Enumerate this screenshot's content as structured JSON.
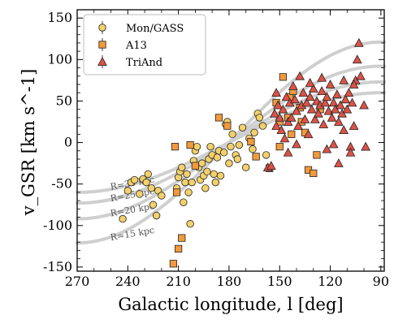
{
  "chart_data": {
    "type": "scatter",
    "xlabel": "Galactic longitude, l [deg]",
    "ylabel": "v_GSR [km s^-1]",
    "xlim": [
      270,
      88
    ],
    "ylim": [
      -155,
      160
    ],
    "x_ticks": [
      270,
      240,
      210,
      180,
      150,
      120,
      90
    ],
    "y_ticks": [
      -150,
      -100,
      -50,
      0,
      50,
      100,
      150
    ],
    "grid": false,
    "legend_position": "top-left",
    "series": [
      {
        "name": "Mon/GASS",
        "marker": "circle",
        "color": "#f3d06a",
        "points": [
          [
            243,
            -92
          ],
          [
            240,
            -58
          ],
          [
            238,
            -48
          ],
          [
            236,
            -45
          ],
          [
            233,
            -62
          ],
          [
            231,
            -44
          ],
          [
            229,
            -48
          ],
          [
            228,
            -38
          ],
          [
            226,
            -55
          ],
          [
            225,
            -75
          ],
          [
            223,
            -88
          ],
          [
            222,
            -58
          ],
          [
            220,
            -64
          ],
          [
            211,
            -55
          ],
          [
            210,
            -42
          ],
          [
            209,
            -35
          ],
          [
            208,
            -30
          ],
          [
            207,
            -72
          ],
          [
            206,
            -48
          ],
          [
            205,
            -38
          ],
          [
            204,
            -60
          ],
          [
            203,
            -98
          ],
          [
            202,
            -48
          ],
          [
            201,
            -22
          ],
          [
            200,
            -10
          ],
          [
            199,
            -5
          ],
          [
            198,
            -30
          ],
          [
            197,
            -45
          ],
          [
            196,
            -25
          ],
          [
            195,
            -40
          ],
          [
            194,
            -55
          ],
          [
            193,
            -35
          ],
          [
            192,
            -20
          ],
          [
            191,
            -5
          ],
          [
            190,
            -15
          ],
          [
            189,
            -38
          ],
          [
            188,
            -48
          ],
          [
            187,
            -18
          ],
          [
            186,
            -10
          ],
          [
            185,
            -40
          ],
          [
            183,
            -12
          ],
          [
            182,
            22
          ],
          [
            181,
            25
          ],
          [
            180,
            -25
          ],
          [
            179,
            -5
          ],
          [
            178,
            10
          ],
          [
            176,
            -15
          ],
          [
            175,
            -20
          ],
          [
            174,
            -3
          ],
          [
            172,
            18
          ],
          [
            170,
            -30
          ],
          [
            168,
            5
          ],
          [
            166,
            -8
          ],
          [
            165,
            12
          ],
          [
            163,
            35
          ],
          [
            162,
            30
          ],
          [
            160,
            20
          ],
          [
            158,
            -15
          ]
        ]
      },
      {
        "name": "A13",
        "marker": "square",
        "color": "#f29a3b",
        "points": [
          [
            213,
            -146
          ],
          [
            210,
            -128
          ],
          [
            208,
            -115
          ],
          [
            211,
            -60
          ],
          [
            212,
            -5
          ],
          [
            203,
            -3
          ],
          [
            200,
            -28
          ],
          [
            186,
            30
          ],
          [
            181,
            20
          ],
          [
            167,
            1
          ],
          [
            164,
            -17
          ],
          [
            156,
            -31
          ],
          [
            152,
            48
          ],
          [
            150,
            -5
          ],
          [
            150,
            25
          ],
          [
            148,
            79
          ],
          [
            145,
            30
          ],
          [
            144,
            55
          ],
          [
            143,
            10
          ],
          [
            142,
            62
          ],
          [
            138,
            42
          ],
          [
            137,
            25
          ],
          [
            135,
            12
          ],
          [
            133,
            -33
          ],
          [
            130,
            -37
          ],
          [
            128,
            -15
          ],
          [
            126,
            40
          ]
        ]
      },
      {
        "name": "TriAnd",
        "marker": "triangle",
        "color": "#de5246",
        "points": [
          [
            157,
            -30
          ],
          [
            155,
            -28
          ],
          [
            153,
            35
          ],
          [
            152,
            60
          ],
          [
            152,
            20
          ],
          [
            151,
            45
          ],
          [
            150,
            30
          ],
          [
            149,
            15
          ],
          [
            148,
            40
          ],
          [
            147,
            5
          ],
          [
            146,
            55
          ],
          [
            145,
            25
          ],
          [
            144,
            48
          ],
          [
            143,
            30
          ],
          [
            142,
            68
          ],
          [
            141,
            52
          ],
          [
            140,
            38
          ],
          [
            139,
            20
          ],
          [
            138,
            80
          ],
          [
            137,
            45
          ],
          [
            136,
            60
          ],
          [
            135,
            28
          ],
          [
            134,
            48
          ],
          [
            133,
            10
          ],
          [
            132,
            55
          ],
          [
            131,
            40
          ],
          [
            130,
            65
          ],
          [
            129,
            28
          ],
          [
            128,
            50
          ],
          [
            127,
            35
          ],
          [
            126,
            45
          ],
          [
            125,
            62
          ],
          [
            124,
            22
          ],
          [
            123,
            48
          ],
          [
            122,
            55
          ],
          [
            121,
            38
          ],
          [
            120,
            70
          ],
          [
            119,
            30
          ],
          [
            118,
            48
          ],
          [
            117,
            40
          ],
          [
            116,
            58
          ],
          [
            115,
            25
          ],
          [
            114,
            45
          ],
          [
            113,
            35
          ],
          [
            112,
            15
          ],
          [
            111,
            52
          ],
          [
            110,
            40
          ],
          [
            109,
            60
          ],
          [
            108,
            -5
          ],
          [
            107,
            48
          ],
          [
            106,
            20
          ],
          [
            105,
            75
          ],
          [
            104,
            100
          ],
          [
            103,
            120
          ],
          [
            102,
            80
          ],
          [
            106,
            70
          ],
          [
            112,
            75
          ],
          [
            118,
            -2
          ],
          [
            122,
            -8
          ],
          [
            108,
            -12
          ],
          [
            145,
            -12
          ],
          [
            115,
            -25
          ],
          [
            99,
            -5
          ],
          [
            100,
            45
          ],
          [
            125,
            78
          ],
          [
            132,
            72
          ],
          [
            140,
            -2
          ]
        ]
      }
    ],
    "curve_labels": [
      "R=30 kpc",
      "R=25 kpc",
      "R=20 kpc",
      "R=15 kpc"
    ],
    "model_curves_amplitude": [
      60,
      73,
      92,
      121
    ]
  }
}
